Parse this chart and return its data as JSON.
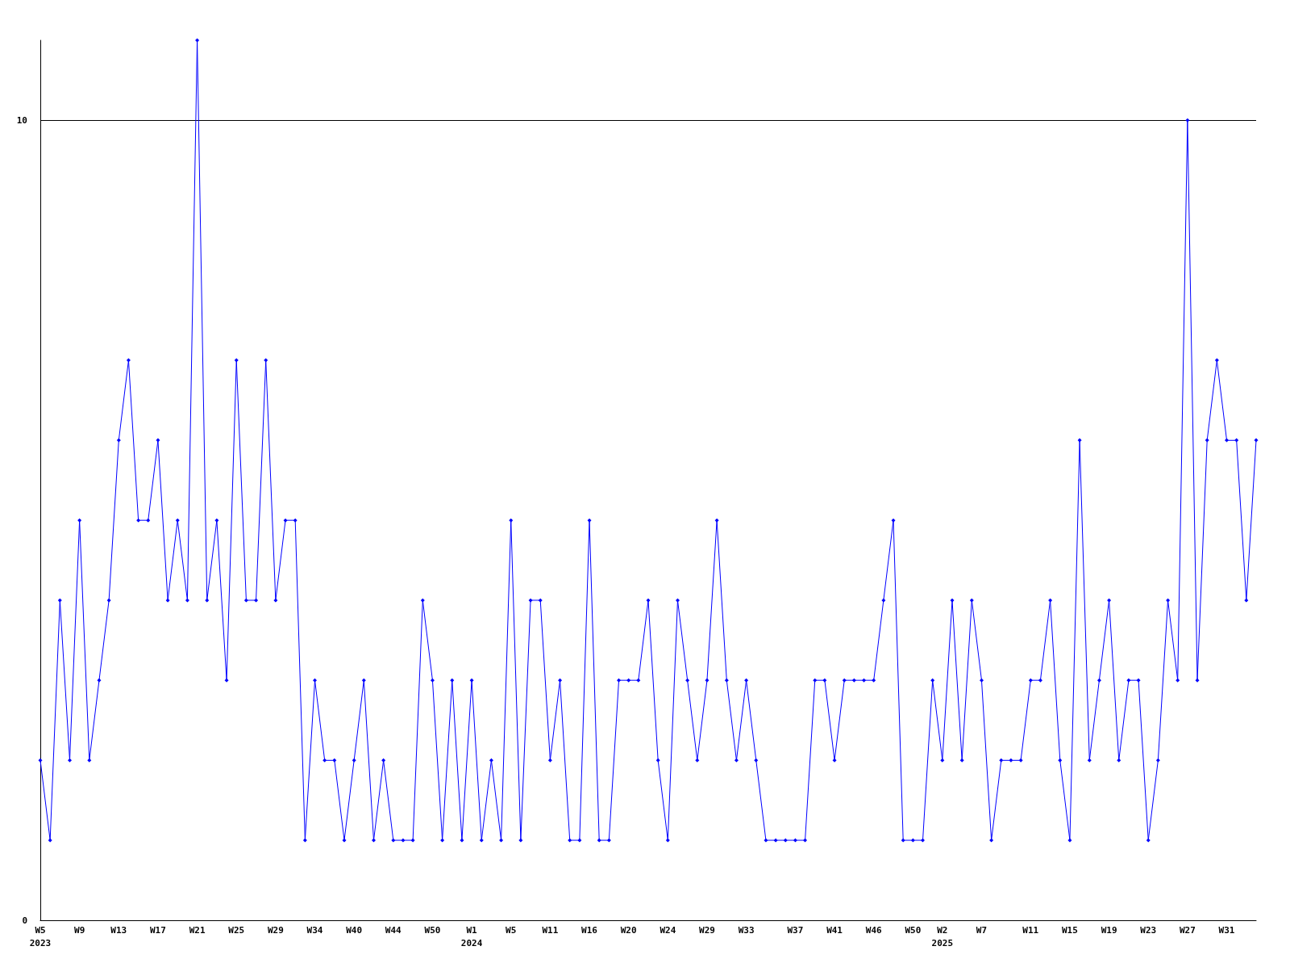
{
  "chart_data": {
    "type": "line",
    "categories": [
      "W5\n2023",
      null,
      null,
      null,
      "W9",
      null,
      null,
      null,
      "W13",
      null,
      null,
      null,
      "W17",
      null,
      null,
      null,
      "W21",
      null,
      null,
      null,
      "W25",
      null,
      null,
      null,
      "W29",
      null,
      null,
      null,
      "W34",
      null,
      null,
      null,
      "W40",
      null,
      null,
      null,
      "W44",
      null,
      null,
      null,
      "W50",
      null,
      null,
      null,
      "W1\n2024",
      null,
      null,
      null,
      "W5",
      null,
      null,
      null,
      "W11",
      null,
      null,
      null,
      "W16",
      null,
      null,
      null,
      "W20",
      null,
      null,
      null,
      "W24",
      null,
      null,
      null,
      "W29",
      null,
      null,
      null,
      "W33",
      null,
      null,
      null,
      null,
      "W37",
      null,
      null,
      null,
      "W41",
      null,
      null,
      null,
      "W46",
      null,
      null,
      null,
      "W50",
      null,
      null,
      "W2\n2025",
      null,
      null,
      null,
      "W7",
      null,
      null,
      null,
      null,
      "W11",
      null,
      null,
      null,
      "W15",
      null,
      null,
      null,
      "W19",
      null,
      null,
      null,
      "W23",
      null,
      null,
      null,
      "W27",
      null,
      null,
      null,
      "W31",
      null,
      null,
      null
    ],
    "series": [
      {
        "color": "#0000ff",
        "values": [
          2,
          1,
          4,
          2,
          5,
          2,
          3,
          4,
          6,
          7,
          5,
          5,
          6,
          4,
          5,
          4,
          11,
          4,
          5,
          3,
          7,
          4,
          4,
          7,
          4,
          5,
          5,
          1,
          3,
          2,
          2,
          1,
          2,
          3,
          1,
          2,
          1,
          1,
          1,
          4,
          3,
          1,
          3,
          1,
          3,
          1,
          2,
          1,
          5,
          1,
          4,
          4,
          2,
          3,
          1,
          1,
          5,
          1,
          1,
          3,
          3,
          3,
          4,
          2,
          1,
          4,
          3,
          2,
          3,
          5,
          3,
          2,
          3,
          2,
          1,
          1,
          1,
          1,
          1,
          3,
          3,
          2,
          3,
          3,
          3,
          3,
          4,
          5,
          1,
          1,
          1,
          3,
          2,
          4,
          2,
          4,
          3,
          1,
          2,
          2,
          2,
          3,
          3,
          4,
          2,
          1,
          6,
          2,
          3,
          4,
          2,
          3,
          3,
          1,
          2,
          4,
          3,
          10,
          3,
          6,
          7,
          6,
          6,
          4,
          6
        ]
      }
    ],
    "ylim": [
      0,
      11
    ],
    "yticks": [
      0,
      10
    ],
    "grid": "y",
    "marker": "diamond",
    "line_style": "solid"
  }
}
